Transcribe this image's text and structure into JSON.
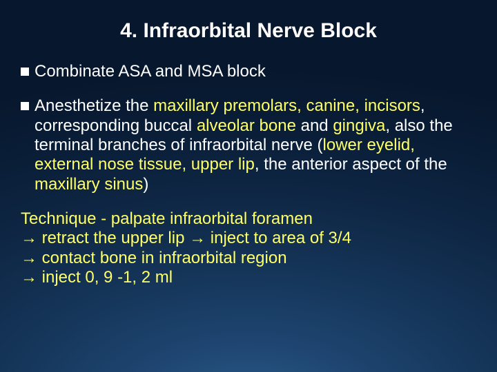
{
  "slide": {
    "title": "4. Infraorbital Nerve Block",
    "background": {
      "gradient_center": "#2a5a8a",
      "gradient_edge": "#07172d"
    },
    "text_color": "#ffffff",
    "highlight_color": "#ffff66",
    "title_fontsize": 30,
    "body_fontsize": 24,
    "bullet1": "Combinate ASA and MSA block",
    "bullet2": {
      "t1": "Anesthetize the ",
      "h1": "maxillary premolars, canine, incisors",
      "t2": ", corresponding buccal ",
      "h2": "alveolar bone",
      "t3": " and ",
      "h3": "gingiva",
      "t4": ", also the terminal branches of infraorbital nerve (",
      "h4": "lower eyelid, external nose tissue, upper lip",
      "t5": ", the anterior aspect of the ",
      "h5": "maxillary sinus",
      "t6": ")"
    },
    "technique": {
      "line1": "Technique - palpate infraorbital foramen",
      "line2": "→ retract the upper lip → inject to area of 3/4",
      "line3": "→ contact bone in infraorbital region",
      "line4": "→ inject 0, 9 -1, 2 ml"
    }
  }
}
